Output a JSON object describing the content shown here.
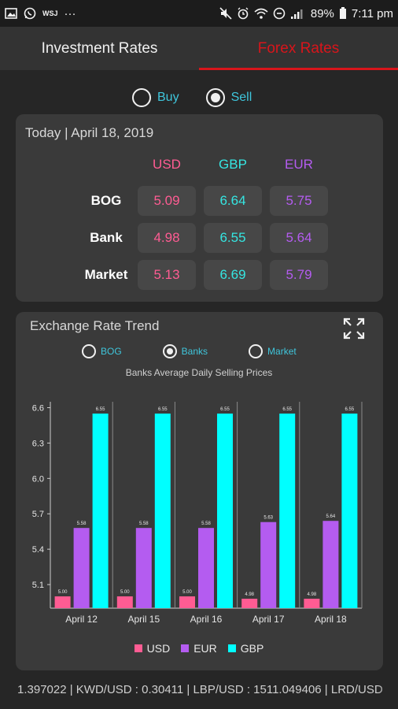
{
  "status_bar": {
    "left_icons": [
      "image-icon",
      "whatsapp-icon",
      "wsj-icon",
      "more-dots-icon"
    ],
    "wsj_text": "WSJ",
    "dots_text": "···",
    "battery": "89%",
    "time": "7:11 pm"
  },
  "tabs": [
    {
      "label": "Investment Rates",
      "active": false
    },
    {
      "label": "Forex Rates",
      "active": true
    }
  ],
  "mode": {
    "options": [
      {
        "label": "Buy",
        "selected": false
      },
      {
        "label": "Sell",
        "selected": true
      }
    ]
  },
  "today": {
    "title": "Today | April 18, 2019",
    "columns": [
      "USD",
      "GBP",
      "EUR"
    ],
    "rows": [
      {
        "label": "BOG",
        "values": [
          "5.09",
          "6.64",
          "5.75"
        ]
      },
      {
        "label": "Bank",
        "values": [
          "4.98",
          "6.55",
          "5.64"
        ]
      },
      {
        "label": "Market",
        "values": [
          "5.13",
          "6.69",
          "5.79"
        ]
      }
    ]
  },
  "trend": {
    "title": "Exchange Rate Trend",
    "source_options": [
      {
        "label": "BOG",
        "selected": false
      },
      {
        "label": "Banks",
        "selected": true
      },
      {
        "label": "Market",
        "selected": false
      }
    ]
  },
  "chart_data": {
    "type": "bar",
    "title": "Banks Average Daily Selling Prices",
    "categories": [
      "April 12",
      "April 15",
      "April 16",
      "April 17",
      "April 18"
    ],
    "series": [
      {
        "name": "USD",
        "color": "#ff5c93",
        "values": [
          5.0,
          5.0,
          5.0,
          4.98,
          4.98
        ]
      },
      {
        "name": "EUR",
        "color": "#b45cf0",
        "values": [
          5.58,
          5.58,
          5.58,
          5.63,
          5.64
        ]
      },
      {
        "name": "GBP",
        "color": "#00ffff",
        "values": [
          6.55,
          6.55,
          6.55,
          6.55,
          6.55
        ]
      }
    ],
    "data_labels": [
      [
        "5.00",
        "5.00",
        "5.00",
        "4.98",
        "4.98"
      ],
      [
        "5.58",
        "5.58",
        "5.58",
        "5.63",
        "5.64"
      ],
      [
        "6.55",
        "6.55",
        "6.55",
        "6.55",
        "6.55"
      ]
    ],
    "y_ticks": [
      "5.1",
      "5.4",
      "5.7",
      "6.0",
      "6.3",
      "6.6"
    ],
    "ylim": [
      4.9,
      6.65
    ],
    "legend_position": "bottom",
    "grid": "vertical"
  },
  "ticker": {
    "text": "1.397022 | KWD/USD : 0.30411 | LBP/USD : 1511.049406 | LRD/USD"
  },
  "colors": {
    "usd": "#ff5c93",
    "gbp": "#35e6e2",
    "eur": "#b45cf0",
    "accent": "#d8151b",
    "radio_label": "#3fc6dc"
  }
}
